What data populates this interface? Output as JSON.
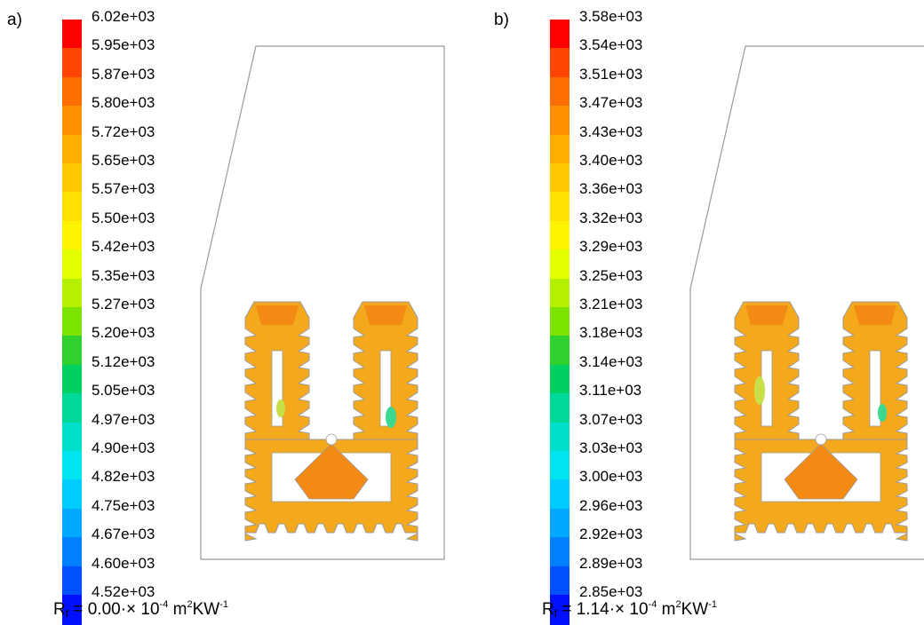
{
  "panels": [
    {
      "label": "a)",
      "ticks": [
        "6.02e+03",
        "5.95e+03",
        "5.87e+03",
        "5.80e+03",
        "5.72e+03",
        "5.65e+03",
        "5.57e+03",
        "5.50e+03",
        "5.42e+03",
        "5.35e+03",
        "5.27e+03",
        "5.20e+03",
        "5.12e+03",
        "5.05e+03",
        "4.97e+03",
        "4.90e+03",
        "4.82e+03",
        "4.75e+03",
        "4.67e+03",
        "4.60e+03",
        "4.52e+03"
      ],
      "caption": {
        "r": "R",
        "sub": "f",
        "mid": " = 0.00·× 10",
        "exp": "-4",
        "unit1": " m",
        "exp2": "2",
        "unit2": "KW",
        "exp3": "-1"
      }
    },
    {
      "label": "b)",
      "ticks": [
        "3.58e+03",
        "3.54e+03",
        "3.51e+03",
        "3.47e+03",
        "3.43e+03",
        "3.40e+03",
        "3.36e+03",
        "3.32e+03",
        "3.29e+03",
        "3.25e+03",
        "3.21e+03",
        "3.18e+03",
        "3.14e+03",
        "3.11e+03",
        "3.07e+03",
        "3.03e+03",
        "3.00e+03",
        "2.96e+03",
        "2.92e+03",
        "2.89e+03",
        "2.85e+03"
      ],
      "caption": {
        "r": "R",
        "sub": "f",
        "mid": " = 1.14·× 10",
        "exp": "-4",
        "unit1": " m",
        "exp2": "2",
        "unit2": "KW",
        "exp3": "-1"
      }
    }
  ],
  "colormap": [
    "#ff0000",
    "#ff4600",
    "#ff6e00",
    "#ff9000",
    "#ffae00",
    "#ffc800",
    "#ffe000",
    "#fff400",
    "#e4ff00",
    "#b4f000",
    "#7ae400",
    "#2ed12e",
    "#00d060",
    "#00d898",
    "#00e0c8",
    "#00e4f0",
    "#00ccff",
    "#00a8ff",
    "#0080ff",
    "#0050ff",
    "#0010ff"
  ],
  "field_colors": {
    "main": "#f4a81c",
    "hot": "#f28a14",
    "warm": "#f8c02a",
    "cool": "#c8e048",
    "cold": "#3ad890",
    "outline": "#9a9a9a"
  }
}
